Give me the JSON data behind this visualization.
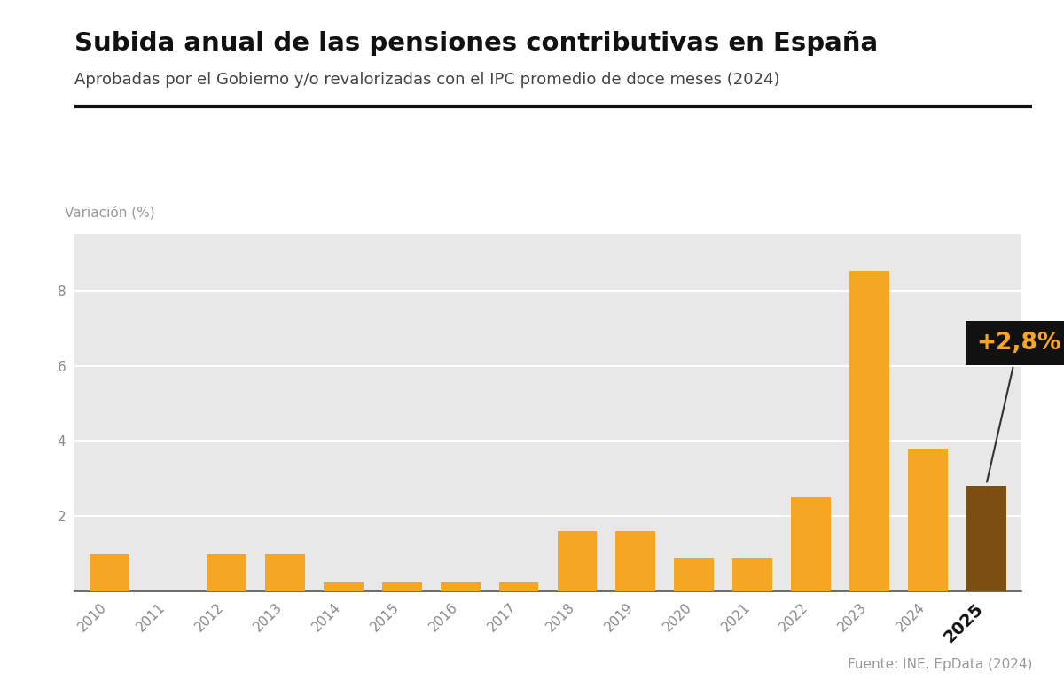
{
  "title": "Subida anual de las pensiones contributivas en España",
  "subtitle": "Aprobadas por el Gobierno y/o revalorizadas con el IPC promedio de doce meses (2024)",
  "ylabel": "Variación (%)",
  "source": "Fuente: INE, EpData (2024)",
  "years": [
    2010,
    2011,
    2012,
    2013,
    2014,
    2015,
    2016,
    2017,
    2018,
    2019,
    2020,
    2021,
    2022,
    2023,
    2024,
    2025
  ],
  "values": [
    1.0,
    0.0,
    1.0,
    1.0,
    0.25,
    0.25,
    0.25,
    0.25,
    1.6,
    1.6,
    0.9,
    0.9,
    2.5,
    8.5,
    3.8,
    2.8
  ],
  "bar_colors": [
    "#F5A623",
    "#F5A623",
    "#F5A623",
    "#F5A623",
    "#F5A623",
    "#F5A623",
    "#F5A623",
    "#F5A623",
    "#F5A623",
    "#F5A623",
    "#F5A623",
    "#F5A623",
    "#F5A623",
    "#F5A623",
    "#F5A623",
    "#7B4F12"
  ],
  "annotation_text": "+2,8%",
  "annotation_year": 2025,
  "annotation_value": 2.8,
  "annotation_box_color": "#111111",
  "annotation_text_color": "#F5A623",
  "ylim": [
    0,
    9.5
  ],
  "yticks": [
    2,
    4,
    6,
    8
  ],
  "background_color": "#E8E8E8",
  "figure_bg": "#FFFFFF",
  "title_fontsize": 21,
  "subtitle_fontsize": 13,
  "ylabel_fontsize": 11,
  "tick_fontsize": 11,
  "source_fontsize": 11
}
